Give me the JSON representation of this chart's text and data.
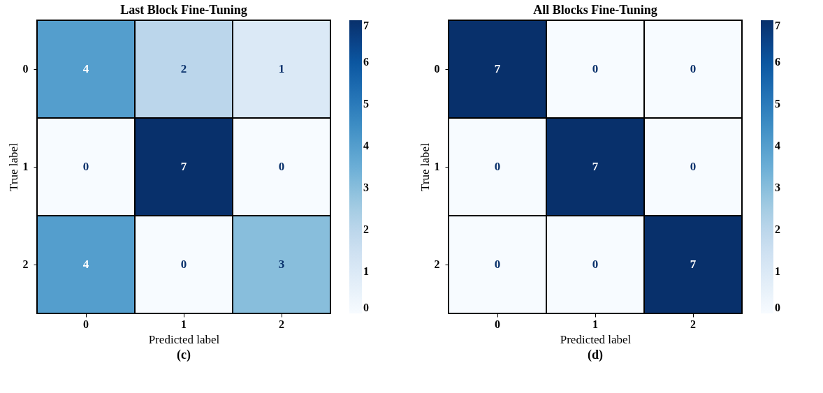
{
  "chart_data": [
    {
      "type": "heatmap",
      "title": "Last Block Fine-Tuning",
      "xlabel": "Predicted label",
      "ylabel": "True label",
      "categories": [
        "0",
        "1",
        "2"
      ],
      "y_categories": [
        "0",
        "1",
        "2"
      ],
      "cells": [
        [
          4,
          2,
          1
        ],
        [
          0,
          7,
          0
        ],
        [
          4,
          0,
          3
        ]
      ],
      "clim": [
        0,
        7
      ],
      "cticks": [
        0,
        1,
        2,
        3,
        4,
        5,
        6,
        7
      ],
      "data_labels": true,
      "annotations": [
        "(c)"
      ]
    },
    {
      "type": "heatmap",
      "title": "All Blocks Fine-Tuning",
      "xlabel": "Predicted label",
      "ylabel": "True label",
      "categories": [
        "0",
        "1",
        "2"
      ],
      "y_categories": [
        "0",
        "1",
        "2"
      ],
      "cells": [
        [
          7,
          0,
          0
        ],
        [
          0,
          7,
          0
        ],
        [
          0,
          0,
          7
        ]
      ],
      "clim": [
        0,
        7
      ],
      "cticks": [
        0,
        1,
        2,
        3,
        4,
        5,
        6,
        7
      ],
      "data_labels": true,
      "annotations": [
        "(d)"
      ]
    }
  ]
}
